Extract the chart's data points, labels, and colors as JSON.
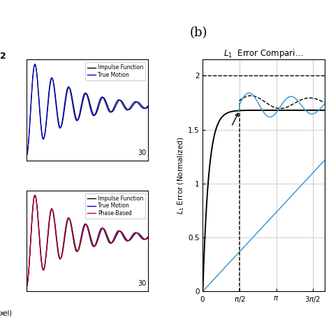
{
  "title_b": "(b)",
  "right_title": "$L_1$  Error Compari…",
  "ylabel_right": "$L_1$ Error (Normalized)",
  "xlabel_right_tick_vals": [
    0,
    1.5707963,
    3.1415927,
    4.712389
  ],
  "ylim_right": [
    0,
    2.15
  ],
  "yticks_right": [
    0,
    0.5,
    1.0,
    1.5,
    2.0
  ],
  "xlim_right": [
    0,
    5.2
  ],
  "legend1_labels": [
    "Impulse Function",
    "True Motion"
  ],
  "legend2_labels": [
    "Impulse Function",
    "True Motion",
    "Phase-Based"
  ],
  "top_left_label": "2",
  "bot_left_label": "xel)",
  "background": "#ffffff",
  "impulse_color": "#000000",
  "true_motion_color": "#0000dd",
  "phase_color": "#cc0000",
  "right_black": "#000000",
  "right_blue": "#4499cc"
}
